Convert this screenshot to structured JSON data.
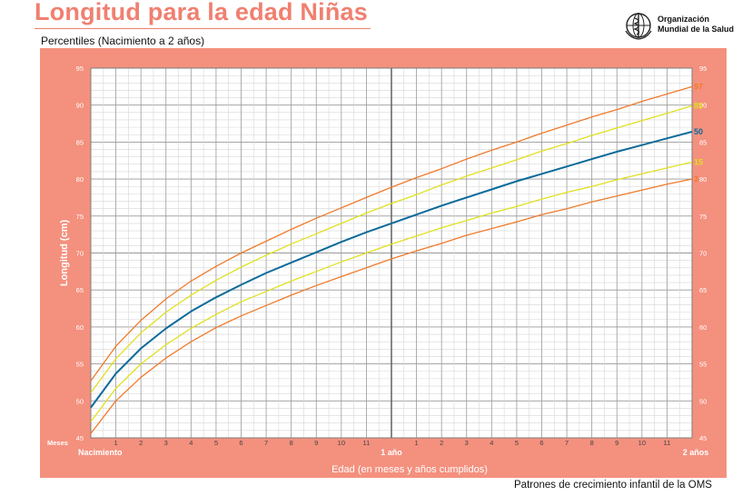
{
  "header": {
    "title": "Longitud para la edad Niñas",
    "subtitle": "Percentiles (Nacimiento a 2 años)",
    "org_line1": "Organización",
    "org_line2": "Mundial de la Salud",
    "footer": "Patrones de crecimiento infantil de la OMS"
  },
  "colors": {
    "frame": "#f4907e",
    "plot_bg": "#ffffff",
    "grid": "#bdbdbd",
    "p3": "#f07a2a",
    "p15": "#e0e020",
    "p50": "#0b6b9a",
    "p85": "#e0e020",
    "p97": "#f07a2a"
  },
  "chart_data": {
    "type": "line",
    "title": "Longitud para la edad Niñas",
    "subtitle": "Percentiles (Nacimiento a 2 años)",
    "xlabel": "Edad (en meses y años cumplidos)",
    "ylabel": "Longitud (cm)",
    "xlim": [
      0,
      24
    ],
    "ylim": [
      45,
      95
    ],
    "y_ticks": [
      45,
      50,
      55,
      60,
      65,
      70,
      75,
      80,
      85,
      90,
      95
    ],
    "x_label_months": "Meses",
    "x_tick_labels": [
      "1",
      "2",
      "3",
      "4",
      "5",
      "6",
      "7",
      "8",
      "9",
      "10",
      "11",
      "1",
      "2",
      "3",
      "4",
      "5",
      "6",
      "7",
      "8",
      "9",
      "10",
      "11"
    ],
    "x_major_labels": [
      "Nacimiento",
      "1 año",
      "2 años"
    ],
    "grid": true,
    "x": [
      0,
      1,
      2,
      3,
      4,
      5,
      6,
      7,
      8,
      9,
      10,
      11,
      12,
      13,
      14,
      15,
      16,
      17,
      18,
      19,
      20,
      21,
      22,
      23,
      24
    ],
    "series": [
      {
        "name": "3",
        "color_key": "p3",
        "values": [
          45.6,
          50.0,
          53.2,
          55.8,
          58.0,
          59.9,
          61.5,
          62.9,
          64.3,
          65.6,
          66.8,
          68.0,
          69.2,
          70.3,
          71.3,
          72.4,
          73.3,
          74.2,
          75.2,
          76.0,
          76.9,
          77.7,
          78.5,
          79.3,
          80.0
        ]
      },
      {
        "name": "15",
        "color_key": "p15",
        "values": [
          47.2,
          51.7,
          55.0,
          57.6,
          59.8,
          61.7,
          63.4,
          64.8,
          66.2,
          67.5,
          68.8,
          70.0,
          71.2,
          72.3,
          73.4,
          74.4,
          75.4,
          76.3,
          77.3,
          78.2,
          79.0,
          79.9,
          80.7,
          81.5,
          82.3
        ]
      },
      {
        "name": "50",
        "color_key": "p50",
        "values": [
          49.1,
          53.7,
          57.1,
          59.8,
          62.1,
          64.0,
          65.7,
          67.3,
          68.7,
          70.1,
          71.5,
          72.8,
          74.0,
          75.2,
          76.4,
          77.5,
          78.6,
          79.7,
          80.7,
          81.7,
          82.7,
          83.7,
          84.6,
          85.5,
          86.4
        ]
      },
      {
        "name": "85",
        "color_key": "p85",
        "values": [
          51.1,
          55.7,
          59.2,
          62.0,
          64.3,
          66.3,
          68.1,
          69.7,
          71.2,
          72.6,
          74.0,
          75.4,
          76.7,
          77.9,
          79.2,
          80.4,
          81.5,
          82.6,
          83.8,
          84.8,
          85.9,
          86.9,
          87.9,
          88.9,
          89.9
        ]
      },
      {
        "name": "97",
        "color_key": "p97",
        "values": [
          52.7,
          57.4,
          60.9,
          63.8,
          66.2,
          68.2,
          70.0,
          71.6,
          73.2,
          74.7,
          76.1,
          77.5,
          78.9,
          80.2,
          81.4,
          82.7,
          83.9,
          85.0,
          86.2,
          87.3,
          88.4,
          89.4,
          90.5,
          91.5,
          92.5
        ]
      }
    ]
  }
}
